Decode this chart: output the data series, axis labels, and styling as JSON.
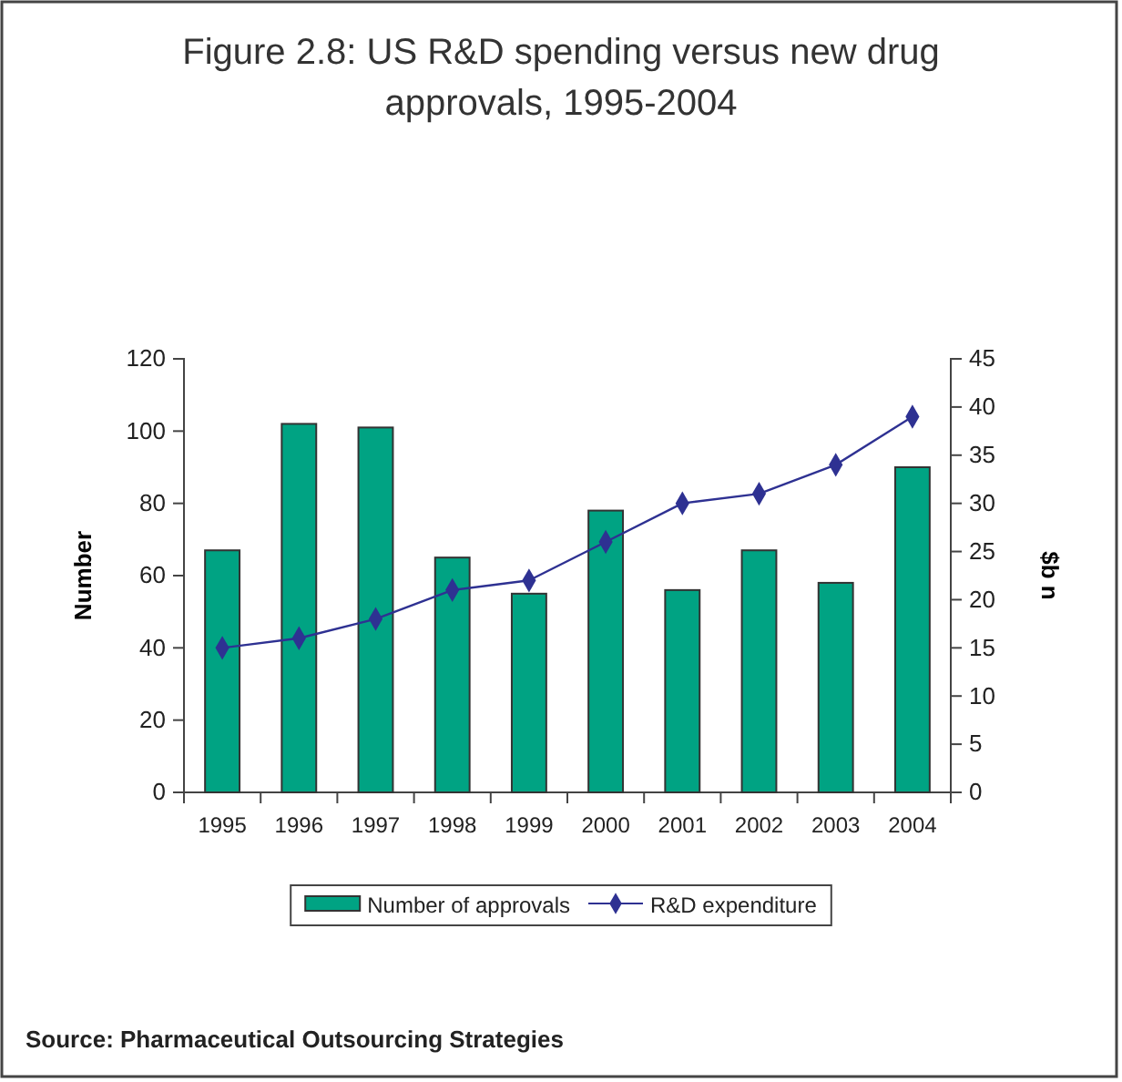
{
  "chart_data": {
    "type": "bar",
    "title": "Figure 2.8: US R&D spending versus new drug approvals, 1995-2004",
    "categories": [
      "1995",
      "1996",
      "1997",
      "1998",
      "1999",
      "2000",
      "2001",
      "2002",
      "2003",
      "2004"
    ],
    "series": [
      {
        "name": "Number of approvals",
        "color": "#00a383",
        "values": [
          67,
          102,
          101,
          65,
          55,
          78,
          56,
          67,
          58,
          90
        ]
      },
      {
        "name": "R&D expenditure",
        "type": "line",
        "axis": "y2",
        "color": "#2e3192",
        "marker": "diamond",
        "values": [
          15,
          16,
          18,
          21,
          22,
          26,
          30,
          31,
          34,
          39
        ]
      }
    ],
    "ylabel": "Number",
    "y2label": "$b n",
    "ylim": [
      0,
      120
    ],
    "yticks": [
      0,
      20,
      40,
      60,
      80,
      100,
      120
    ],
    "y2lim": [
      0,
      45
    ],
    "y2ticks": [
      0,
      5,
      10,
      15,
      20,
      25,
      30,
      35,
      40,
      45
    ],
    "legend": "bottom",
    "grid": false,
    "annotations": [
      "Source: Pharmaceutical Outsourcing Strategies"
    ]
  }
}
